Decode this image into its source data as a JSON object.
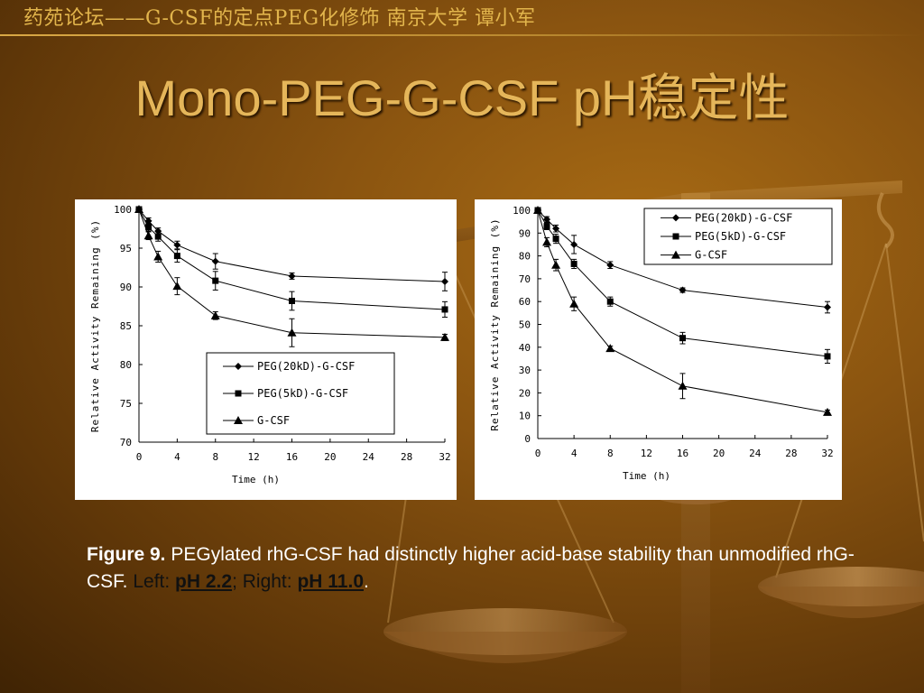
{
  "header": {
    "text": "药苑论坛——G-CSF的定点PEG化修饰   南京大学   谭小军"
  },
  "title": "Mono-PEG-G-CSF pH稳定性",
  "caption": {
    "figure_label": "Figure 9.",
    "text": " PEGylated rhG-CSF had distinctly higher acid-base stability than unmodified rhG-CSF. ",
    "left_label": "Left: ",
    "left_ph": "pH 2.2",
    "sep": "; Right: ",
    "right_ph": "pH 11.0",
    "end": "."
  },
  "colors": {
    "accent": "#e5b65a",
    "header": "#e2b54c",
    "background": "#7a4a0e"
  },
  "chart_data": [
    {
      "type": "line",
      "panel": "left",
      "xlabel": "Time (h)",
      "ylabel": "Relative Activity Remaining (%)",
      "xlim": [
        0,
        32
      ],
      "ylim": [
        70,
        100
      ],
      "xticks": [
        0,
        4,
        8,
        12,
        16,
        20,
        24,
        28,
        32
      ],
      "yticks": [
        70,
        75,
        80,
        85,
        90,
        95,
        100
      ],
      "legend_position": "lower-center",
      "series": [
        {
          "name": "PEG(20kD)-G-CSF",
          "marker": "diamond",
          "x": [
            0,
            1,
            2,
            4,
            8,
            16,
            32
          ],
          "y": [
            100,
            98.5,
            97.2,
            95.4,
            93.3,
            91.4,
            90.7
          ],
          "err": [
            0,
            0.4,
            0.4,
            0.5,
            1.0,
            0.4,
            1.2
          ]
        },
        {
          "name": "PEG(5kD)-G-CSF",
          "marker": "square",
          "x": [
            0,
            1,
            2,
            4,
            8,
            16,
            32
          ],
          "y": [
            100,
            97.7,
            96.5,
            94.0,
            90.8,
            88.2,
            87.1
          ],
          "err": [
            0,
            0.5,
            0.6,
            0.8,
            1.2,
            1.2,
            1.0
          ]
        },
        {
          "name": "G-CSF",
          "marker": "triangle",
          "x": [
            0,
            1,
            2,
            4,
            8,
            16,
            32
          ],
          "y": [
            100,
            96.6,
            93.9,
            90.1,
            86.3,
            84.1,
            83.5
          ],
          "err": [
            0,
            0.5,
            0.7,
            1.1,
            0.5,
            1.8,
            0.4
          ]
        }
      ]
    },
    {
      "type": "line",
      "panel": "right",
      "xlabel": "Time (h)",
      "ylabel": "Relative Activity Remaining (%)",
      "xlim": [
        0,
        32
      ],
      "ylim": [
        0,
        100
      ],
      "xticks": [
        0,
        4,
        8,
        12,
        16,
        20,
        24,
        28,
        32
      ],
      "yticks": [
        0,
        10,
        20,
        30,
        40,
        50,
        60,
        70,
        80,
        90,
        100
      ],
      "legend_position": "top-right",
      "series": [
        {
          "name": "PEG(20kD)-G-CSF",
          "marker": "diamond",
          "x": [
            0,
            1,
            2,
            4,
            8,
            16,
            32
          ],
          "y": [
            100,
            96,
            92,
            85,
            76,
            65,
            57.5
          ],
          "err": [
            0,
            1.2,
            1.5,
            4,
            1.5,
            1.0,
            2.5
          ]
        },
        {
          "name": "PEG(5kD)-G-CSF",
          "marker": "square",
          "x": [
            0,
            1,
            2,
            4,
            8,
            16,
            32
          ],
          "y": [
            100,
            93,
            87.5,
            76.5,
            60,
            44,
            36
          ],
          "err": [
            0,
            1.5,
            2.0,
            2.0,
            2.0,
            2.5,
            3.0
          ]
        },
        {
          "name": "G-CSF",
          "marker": "triangle",
          "x": [
            0,
            1,
            2,
            4,
            8,
            16,
            32
          ],
          "y": [
            100,
            86,
            76,
            59,
            39.5,
            23,
            11.5
          ],
          "err": [
            0,
            2.0,
            2.5,
            3.0,
            1.0,
            5.5,
            1.0
          ]
        }
      ]
    }
  ]
}
